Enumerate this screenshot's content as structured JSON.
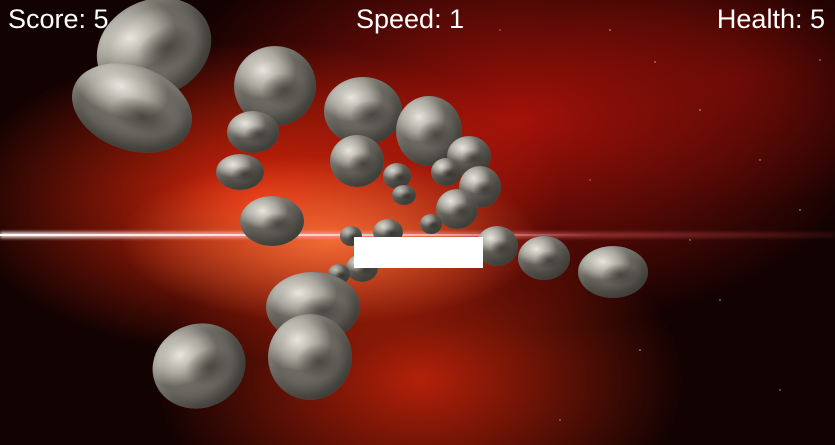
{
  "hud": {
    "score": "Score: 5",
    "speed": "Speed: 1",
    "health": "Health: 5"
  },
  "colors": {
    "nebula": "#d82a0c",
    "space": "#120202",
    "asteroid": "#a8a69c",
    "player": "#ffffff"
  }
}
